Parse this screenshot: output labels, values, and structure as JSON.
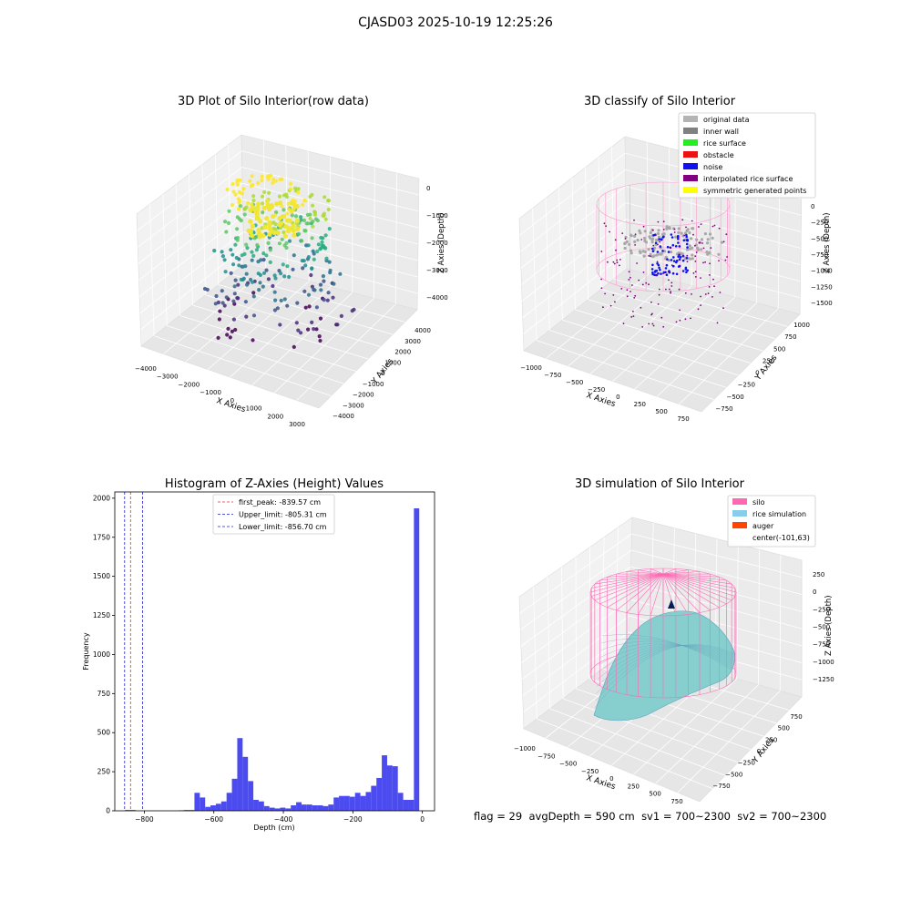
{
  "main_title": "CJASD03 2025-10-19 12:25:26",
  "colors": {
    "hist_bar": "#4b4bf0",
    "first_peak": "#e03030",
    "limits": "#2020d0",
    "silo_wire": "#ff69b4",
    "rice_sim": "#87cecf"
  },
  "chart_data": [
    {
      "type": "scatter",
      "subtype": "3d",
      "title": "3D Plot of Silo Interior(row data)",
      "xlabel": "X Axies",
      "ylabel": "Y Axies",
      "zlabel": "Z Axies (Depth)",
      "xticks": [
        "−4000",
        "−3000",
        "−2000",
        "−1000",
        "0",
        "1000",
        "2000",
        "3000"
      ],
      "yticks": [
        "−4000",
        "−3000",
        "−2000",
        "−1000",
        "0",
        "1000",
        "2000",
        "3000",
        "4000"
      ],
      "zticks": [
        "0",
        "−1000",
        "−2000",
        "−3000",
        "−4000"
      ],
      "colormap": "viridis"
    },
    {
      "type": "scatter",
      "subtype": "3d",
      "title": "3D classify of Silo Interior",
      "xlabel": "X Axies",
      "ylabel": "Y Axies",
      "zlabel": "Z Axies (Depth)",
      "xticks": [
        "−1000",
        "−750",
        "−500",
        "−250",
        "0",
        "250",
        "500",
        "750"
      ],
      "yticks": [
        "−750",
        "−500",
        "−250",
        "0",
        "250",
        "500",
        "750",
        "1000"
      ],
      "zticks": [
        "0",
        "−250",
        "−500",
        "−750",
        "−1000",
        "−1250",
        "−1500"
      ],
      "legend_position": "top-right",
      "legend": [
        {
          "label": "original data",
          "color": "#b4b4b4"
        },
        {
          "label": "inner wall",
          "color": "#808080"
        },
        {
          "label": "rice surface",
          "color": "#22ee22"
        },
        {
          "label": "obstacle",
          "color": "#ee1111"
        },
        {
          "label": "noise",
          "color": "#1111ee"
        },
        {
          "label": "interpolated rice surface",
          "color": "#800080"
        },
        {
          "label": "symmetric generated points",
          "color": "#ffff00"
        }
      ]
    },
    {
      "type": "bar",
      "subtype": "histogram",
      "title": "Histogram of Z-Axies (Height) Values",
      "xlabel": "Depth (cm)",
      "ylabel": "Frequency",
      "xlim": [
        -885,
        35
      ],
      "ylim": [
        0,
        2040
      ],
      "xticks": [
        -800,
        -600,
        -400,
        -200,
        0
      ],
      "xtick_labels": [
        "−800",
        "−600",
        "−400",
        "−200",
        "0"
      ],
      "yticks": [
        0,
        250,
        500,
        750,
        1000,
        1250,
        1500,
        1750,
        2000
      ],
      "bin_width": 15.4,
      "bin_start": -856,
      "values": [
        5,
        5,
        0,
        0,
        0,
        0,
        0,
        0,
        0,
        0,
        3,
        5,
        5,
        115,
        85,
        25,
        35,
        45,
        60,
        115,
        205,
        465,
        345,
        190,
        70,
        60,
        30,
        20,
        15,
        20,
        15,
        35,
        55,
        40,
        40,
        35,
        35,
        30,
        40,
        85,
        95,
        95,
        90,
        115,
        95,
        120,
        160,
        210,
        355,
        290,
        285,
        115,
        70,
        70,
        1935
      ],
      "lines": [
        {
          "label": "first_peak: -839.57 cm",
          "x": -839.57,
          "color": "#e03030"
        },
        {
          "label": "Upper_limit: -805.31 cm",
          "x": -805.31,
          "color": "#2020d0"
        },
        {
          "label": "Lower_limit: -856.70 cm",
          "x": -856.7,
          "color": "#2020d0"
        }
      ],
      "legend_position": "top-center"
    },
    {
      "type": "area",
      "subtype": "3d-surface",
      "title": "3D simulation of Silo Interior",
      "xlabel": "X Axies",
      "ylabel": "Y Axies",
      "zlabel": "Z Axies (Depth)",
      "xticks": [
        "−1000",
        "−750",
        "−500",
        "−250",
        "0",
        "250",
        "500",
        "750"
      ],
      "yticks": [
        "−750",
        "−500",
        "−250",
        "0",
        "250",
        "500",
        "750"
      ],
      "zticks": [
        "250",
        "0",
        "−250",
        "−500",
        "−750",
        "−1000",
        "−1250"
      ],
      "legend_position": "top-right",
      "legend": [
        {
          "label": "silo",
          "color": "#ff69b4"
        },
        {
          "label": "rice simulation",
          "color": "#87ceeb"
        },
        {
          "label": "auger",
          "color": "#ff4500"
        },
        {
          "label": "center(-101,63)",
          "color": ""
        }
      ]
    }
  ],
  "footer": {
    "flag": "flag = 29",
    "avg_depth": "avgDepth = 590 cm",
    "sv1": "sv1 = 700~2300",
    "sv2": "sv2 = 700~2300"
  }
}
